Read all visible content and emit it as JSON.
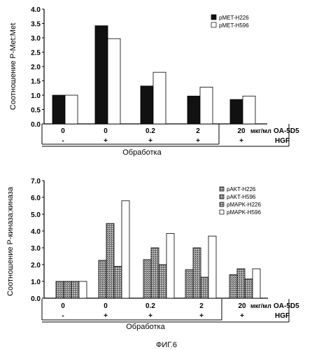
{
  "figure_label": "ФИГ.6",
  "chart_data": [
    {
      "type": "bar",
      "ylabel": "Соотношение P-Met:Met",
      "ylim": [
        0,
        4.0
      ],
      "yticks": [
        "0.0",
        "0.5",
        "1.0",
        "1.5",
        "2.0",
        "2.5",
        "3.0",
        "3.5",
        "4.0"
      ],
      "categories": [
        "0",
        "0",
        "0.2",
        "2",
        "20"
      ],
      "hgf_row": [
        "-",
        "+",
        "+",
        "+",
        "+"
      ],
      "unit_label": "мкг/мл",
      "treatment_label": "OA-5D5",
      "hgf_label": "HGF",
      "group_label": "Обработка",
      "legend_position": "top-right",
      "series": [
        {
          "name": "pMET-H226",
          "color": "#111111",
          "values": [
            1.0,
            3.42,
            1.32,
            0.97,
            0.85
          ]
        },
        {
          "name": "pMET-H596",
          "color": "#ffffff",
          "values": [
            1.0,
            2.97,
            1.8,
            1.28,
            0.97
          ]
        }
      ]
    },
    {
      "type": "bar",
      "ylabel": "Соотношение P-киназа:киназа",
      "ylim": [
        0,
        7.0
      ],
      "yticks": [
        "0.0",
        "1.0",
        "2.0",
        "3.0",
        "4.0",
        "5.0",
        "6.0",
        "7.0"
      ],
      "categories": [
        "0",
        "0",
        "0.2",
        "2",
        "20"
      ],
      "hgf_row": [
        "-",
        "+",
        "+",
        "+",
        "+"
      ],
      "unit_label": "мкг/мл",
      "treatment_label": "OA-5D5",
      "hgf_label": "HGF",
      "group_label": "Обработка",
      "legend_position": "top-right",
      "series": [
        {
          "name": "pAKT-H226",
          "color": "#222222",
          "values": [
            1.0,
            2.25,
            2.3,
            1.7,
            1.4
          ]
        },
        {
          "name": "pAKT-H596",
          "color": "#555555",
          "values": [
            1.0,
            4.45,
            3.0,
            3.0,
            1.75
          ]
        },
        {
          "name": "pMAPK-H226",
          "color": "#bdbdbd",
          "values": [
            1.0,
            1.9,
            2.0,
            1.25,
            1.15
          ]
        },
        {
          "name": "pMAPK-H596",
          "color": "#ffffff",
          "values": [
            1.0,
            5.8,
            3.85,
            3.7,
            1.75
          ]
        }
      ]
    }
  ]
}
